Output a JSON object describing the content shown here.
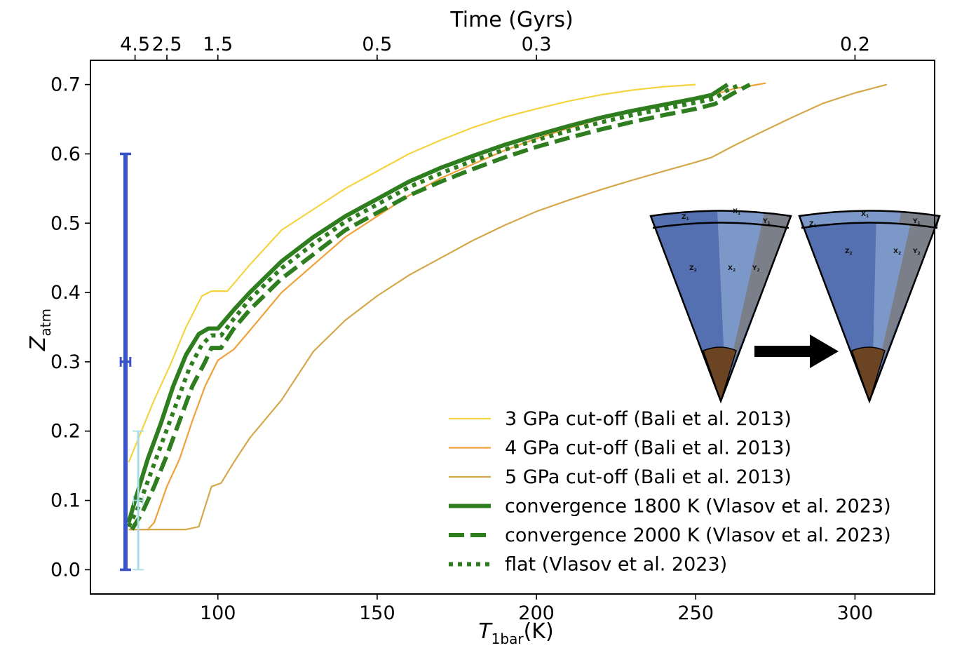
{
  "chart_data": {
    "type": "line",
    "xlabel": "T",
    "xlabel_sub": "1bar",
    "xlabel_unit": "(K)",
    "ylabel": "Z",
    "ylabel_sub": "atm",
    "top_axis_label": "Time (Gyrs)",
    "xlim": [
      60,
      325
    ],
    "ylim": [
      -0.035,
      0.735
    ],
    "xticks": [
      100,
      150,
      200,
      250,
      300
    ],
    "yticks": [
      "0.0",
      "0.1",
      "0.2",
      "0.3",
      "0.4",
      "0.5",
      "0.6",
      "0.7"
    ],
    "top_ticks": [
      {
        "label": "4.5",
        "at": 74
      },
      {
        "label": "2.5",
        "at": 84
      },
      {
        "label": "1.5",
        "at": 100
      },
      {
        "label": "0.5",
        "at": 150
      },
      {
        "label": "0.3",
        "at": 200
      },
      {
        "label": "0.2",
        "at": 300
      }
    ],
    "grid": false,
    "legend_position": "lower-right",
    "series": [
      {
        "name": "3 GPa cut-off (Bali et al. 2013)",
        "color": "#f5d442",
        "style": "solid",
        "width": "thin",
        "points": [
          [
            72,
            0.155
          ],
          [
            76,
            0.2
          ],
          [
            80,
            0.245
          ],
          [
            85,
            0.295
          ],
          [
            90,
            0.35
          ],
          [
            95,
            0.395
          ],
          [
            98,
            0.402
          ],
          [
            103,
            0.402
          ],
          [
            110,
            0.44
          ],
          [
            120,
            0.49
          ],
          [
            130,
            0.52
          ],
          [
            140,
            0.55
          ],
          [
            150,
            0.575
          ],
          [
            160,
            0.6
          ],
          [
            170,
            0.62
          ],
          [
            180,
            0.638
          ],
          [
            190,
            0.653
          ],
          [
            200,
            0.665
          ],
          [
            210,
            0.676
          ],
          [
            220,
            0.685
          ],
          [
            230,
            0.692
          ],
          [
            240,
            0.697
          ],
          [
            250,
            0.7
          ]
        ]
      },
      {
        "name": "4 GPa cut-off (Bali et al. 2013)",
        "color": "#f0a13a",
        "style": "solid",
        "width": "thin",
        "points": [
          [
            72,
            0.058
          ],
          [
            78,
            0.058
          ],
          [
            80,
            0.068
          ],
          [
            84,
            0.12
          ],
          [
            88,
            0.16
          ],
          [
            92,
            0.215
          ],
          [
            96,
            0.265
          ],
          [
            100,
            0.302
          ],
          [
            105,
            0.318
          ],
          [
            110,
            0.345
          ],
          [
            120,
            0.4
          ],
          [
            130,
            0.44
          ],
          [
            140,
            0.48
          ],
          [
            150,
            0.51
          ],
          [
            160,
            0.54
          ],
          [
            170,
            0.565
          ],
          [
            180,
            0.585
          ],
          [
            190,
            0.605
          ],
          [
            200,
            0.622
          ],
          [
            210,
            0.637
          ],
          [
            220,
            0.65
          ],
          [
            230,
            0.661
          ],
          [
            240,
            0.671
          ],
          [
            250,
            0.68
          ],
          [
            256,
            0.686
          ],
          [
            262,
            0.694
          ],
          [
            272,
            0.702
          ]
        ]
      },
      {
        "name": "5 GPa cut-off (Bali et al. 2013)",
        "color": "#d4a84a",
        "style": "solid",
        "width": "thin",
        "points": [
          [
            72,
            0.058
          ],
          [
            90,
            0.058
          ],
          [
            94,
            0.062
          ],
          [
            98,
            0.12
          ],
          [
            101,
            0.125
          ],
          [
            105,
            0.155
          ],
          [
            110,
            0.19
          ],
          [
            120,
            0.245
          ],
          [
            130,
            0.315
          ],
          [
            140,
            0.36
          ],
          [
            150,
            0.395
          ],
          [
            160,
            0.425
          ],
          [
            170,
            0.45
          ],
          [
            180,
            0.475
          ],
          [
            190,
            0.497
          ],
          [
            200,
            0.517
          ],
          [
            210,
            0.533
          ],
          [
            220,
            0.548
          ],
          [
            230,
            0.562
          ],
          [
            240,
            0.575
          ],
          [
            250,
            0.588
          ],
          [
            255,
            0.595
          ],
          [
            262,
            0.612
          ],
          [
            270,
            0.63
          ],
          [
            280,
            0.652
          ],
          [
            290,
            0.673
          ],
          [
            300,
            0.688
          ],
          [
            310,
            0.7
          ]
        ]
      },
      {
        "name": "convergence 1800 K (Vlasov et al. 2023)",
        "color": "#2e7d1e",
        "style": "solid",
        "width": "thick",
        "points": [
          [
            72,
            0.068
          ],
          [
            74,
            0.1
          ],
          [
            78,
            0.16
          ],
          [
            82,
            0.21
          ],
          [
            86,
            0.265
          ],
          [
            90,
            0.31
          ],
          [
            94,
            0.34
          ],
          [
            97,
            0.348
          ],
          [
            100,
            0.348
          ],
          [
            105,
            0.375
          ],
          [
            110,
            0.4
          ],
          [
            120,
            0.445
          ],
          [
            130,
            0.48
          ],
          [
            140,
            0.51
          ],
          [
            150,
            0.535
          ],
          [
            160,
            0.56
          ],
          [
            170,
            0.58
          ],
          [
            180,
            0.597
          ],
          [
            190,
            0.613
          ],
          [
            200,
            0.627
          ],
          [
            210,
            0.64
          ],
          [
            220,
            0.652
          ],
          [
            230,
            0.662
          ],
          [
            240,
            0.671
          ],
          [
            250,
            0.68
          ],
          [
            255,
            0.685
          ],
          [
            260,
            0.7
          ]
        ]
      },
      {
        "name": "convergence 2000 K (Vlasov et al. 2023)",
        "color": "#2e7d1e",
        "style": "dashed",
        "width": "thick",
        "points": [
          [
            73,
            0.058
          ],
          [
            76,
            0.08
          ],
          [
            80,
            0.12
          ],
          [
            84,
            0.165
          ],
          [
            88,
            0.215
          ],
          [
            92,
            0.265
          ],
          [
            96,
            0.3
          ],
          [
            98,
            0.32
          ],
          [
            101,
            0.32
          ],
          [
            105,
            0.348
          ],
          [
            110,
            0.375
          ],
          [
            120,
            0.42
          ],
          [
            130,
            0.455
          ],
          [
            140,
            0.49
          ],
          [
            150,
            0.515
          ],
          [
            160,
            0.54
          ],
          [
            170,
            0.56
          ],
          [
            180,
            0.578
          ],
          [
            190,
            0.595
          ],
          [
            200,
            0.61
          ],
          [
            210,
            0.623
          ],
          [
            220,
            0.635
          ],
          [
            230,
            0.646
          ],
          [
            240,
            0.656
          ],
          [
            250,
            0.665
          ],
          [
            256,
            0.672
          ],
          [
            262,
            0.688
          ],
          [
            267,
            0.7
          ]
        ]
      },
      {
        "name": "flat (Vlasov et al. 2023)",
        "color": "#2e7d1e",
        "style": "dotted",
        "width": "thick",
        "points": [
          [
            72,
            0.062
          ],
          [
            75,
            0.09
          ],
          [
            79,
            0.14
          ],
          [
            83,
            0.19
          ],
          [
            87,
            0.24
          ],
          [
            91,
            0.29
          ],
          [
            95,
            0.325
          ],
          [
            98,
            0.338
          ],
          [
            101,
            0.338
          ],
          [
            105,
            0.362
          ],
          [
            110,
            0.39
          ],
          [
            120,
            0.435
          ],
          [
            130,
            0.47
          ],
          [
            140,
            0.502
          ],
          [
            150,
            0.527
          ],
          [
            160,
            0.552
          ],
          [
            170,
            0.572
          ],
          [
            180,
            0.59
          ],
          [
            190,
            0.606
          ],
          [
            200,
            0.62
          ],
          [
            210,
            0.633
          ],
          [
            220,
            0.645
          ],
          [
            230,
            0.656
          ],
          [
            240,
            0.665
          ],
          [
            250,
            0.674
          ],
          [
            256,
            0.68
          ],
          [
            260,
            0.692
          ],
          [
            264,
            0.7
          ]
        ]
      }
    ],
    "error_bars": [
      {
        "color": "#3a55c8",
        "x": 71,
        "x_err": [
          1.5,
          1.5
        ],
        "y": 0.3,
        "y_range": [
          0.0,
          0.6
        ],
        "width": "thick"
      },
      {
        "color": "#a8dde6",
        "x": 75,
        "x_err": [
          1.5,
          1.5
        ],
        "y": 0.1,
        "y_range": [
          0.0,
          0.2
        ],
        "width": "medium"
      }
    ],
    "inset": {
      "description_labels": {
        "before": {
          "z1": "Z",
          "z1_sub": "1",
          "x1": "X",
          "x1_sub": "1",
          "y1": "Y",
          "y1_sub": "1",
          "z2": "Z",
          "z2_sub": "2",
          "x2": "X",
          "x2_sub": "2",
          "y2": "Y",
          "y2_sub": "2"
        },
        "after": {
          "z1": "Z",
          "z1_sub": "1",
          "x1": "X",
          "x1_sub": "1",
          "y1": "Y",
          "y1_sub": "1",
          "z2": "Z",
          "z2_sub": "2",
          "x2": "X",
          "x2_sub": "2",
          "y2": "Y",
          "y2_sub": "2"
        }
      },
      "colors": {
        "z": "#5470b0",
        "x": "#7c98c8",
        "y": "#7a7f8a",
        "core": "#6b4423",
        "arrow": "#000000"
      }
    }
  }
}
